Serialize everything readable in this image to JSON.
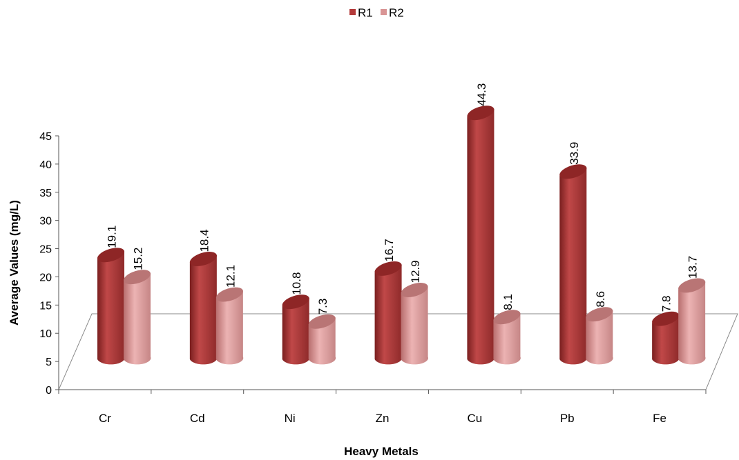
{
  "chart_data": {
    "type": "bar",
    "style": "3d-cylinder",
    "categories": [
      "Cr",
      "Cd",
      "Ni",
      "Zn",
      "Cu",
      "Pb",
      "Fe"
    ],
    "series": [
      {
        "name": "R1",
        "color": "#b33a3a",
        "values": [
          19.1,
          18.4,
          10.8,
          16.7,
          44.3,
          33.9,
          7.8
        ]
      },
      {
        "name": "R2",
        "color": "#d99595",
        "values": [
          15.2,
          12.1,
          7.3,
          12.9,
          8.1,
          8.6,
          13.7
        ]
      }
    ],
    "xlabel": "Heavy Metals",
    "ylabel": "Average Values  (mg/L)",
    "ylim": [
      0,
      45
    ],
    "yticks": [
      0,
      5,
      10,
      15,
      20,
      25,
      30,
      35,
      40,
      45
    ],
    "legend": "top-center",
    "grid": false,
    "data_labels": true
  }
}
